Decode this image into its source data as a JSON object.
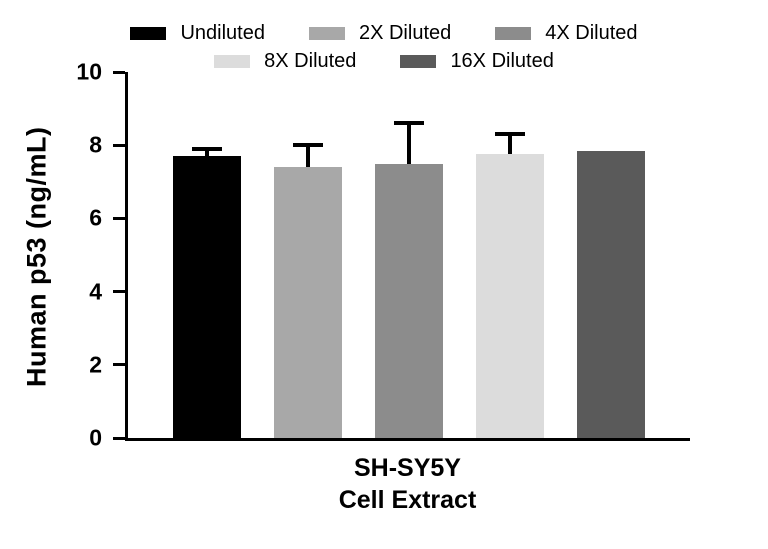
{
  "chart_data": {
    "type": "bar",
    "title": "",
    "ylabel": "Human p53 (ng/mL)",
    "xlabel_lines": [
      "SH-SY5Y",
      "Cell Extract"
    ],
    "ylim": [
      0,
      10
    ],
    "yticks": [
      0,
      2,
      4,
      6,
      8,
      10
    ],
    "grid": false,
    "legend_position": "top",
    "error_bar_color": "#000000",
    "series": [
      {
        "label": "Undiluted",
        "value": 7.7,
        "error": 0.25,
        "color": "#000000"
      },
      {
        "label": "2X Diluted",
        "value": 7.4,
        "error": 0.65,
        "color": "#a8a8a8"
      },
      {
        "label": "4X Diluted",
        "value": 7.5,
        "error": 1.15,
        "color": "#8c8c8c"
      },
      {
        "label": "8X Diluted",
        "value": 7.75,
        "error": 0.6,
        "color": "#dcdcdc"
      },
      {
        "label": "16X Diluted",
        "value": 7.85,
        "error": 0,
        "color": "#5a5a5a"
      }
    ],
    "legend_rows": [
      [
        0,
        1,
        2
      ],
      [
        3,
        4
      ]
    ]
  }
}
